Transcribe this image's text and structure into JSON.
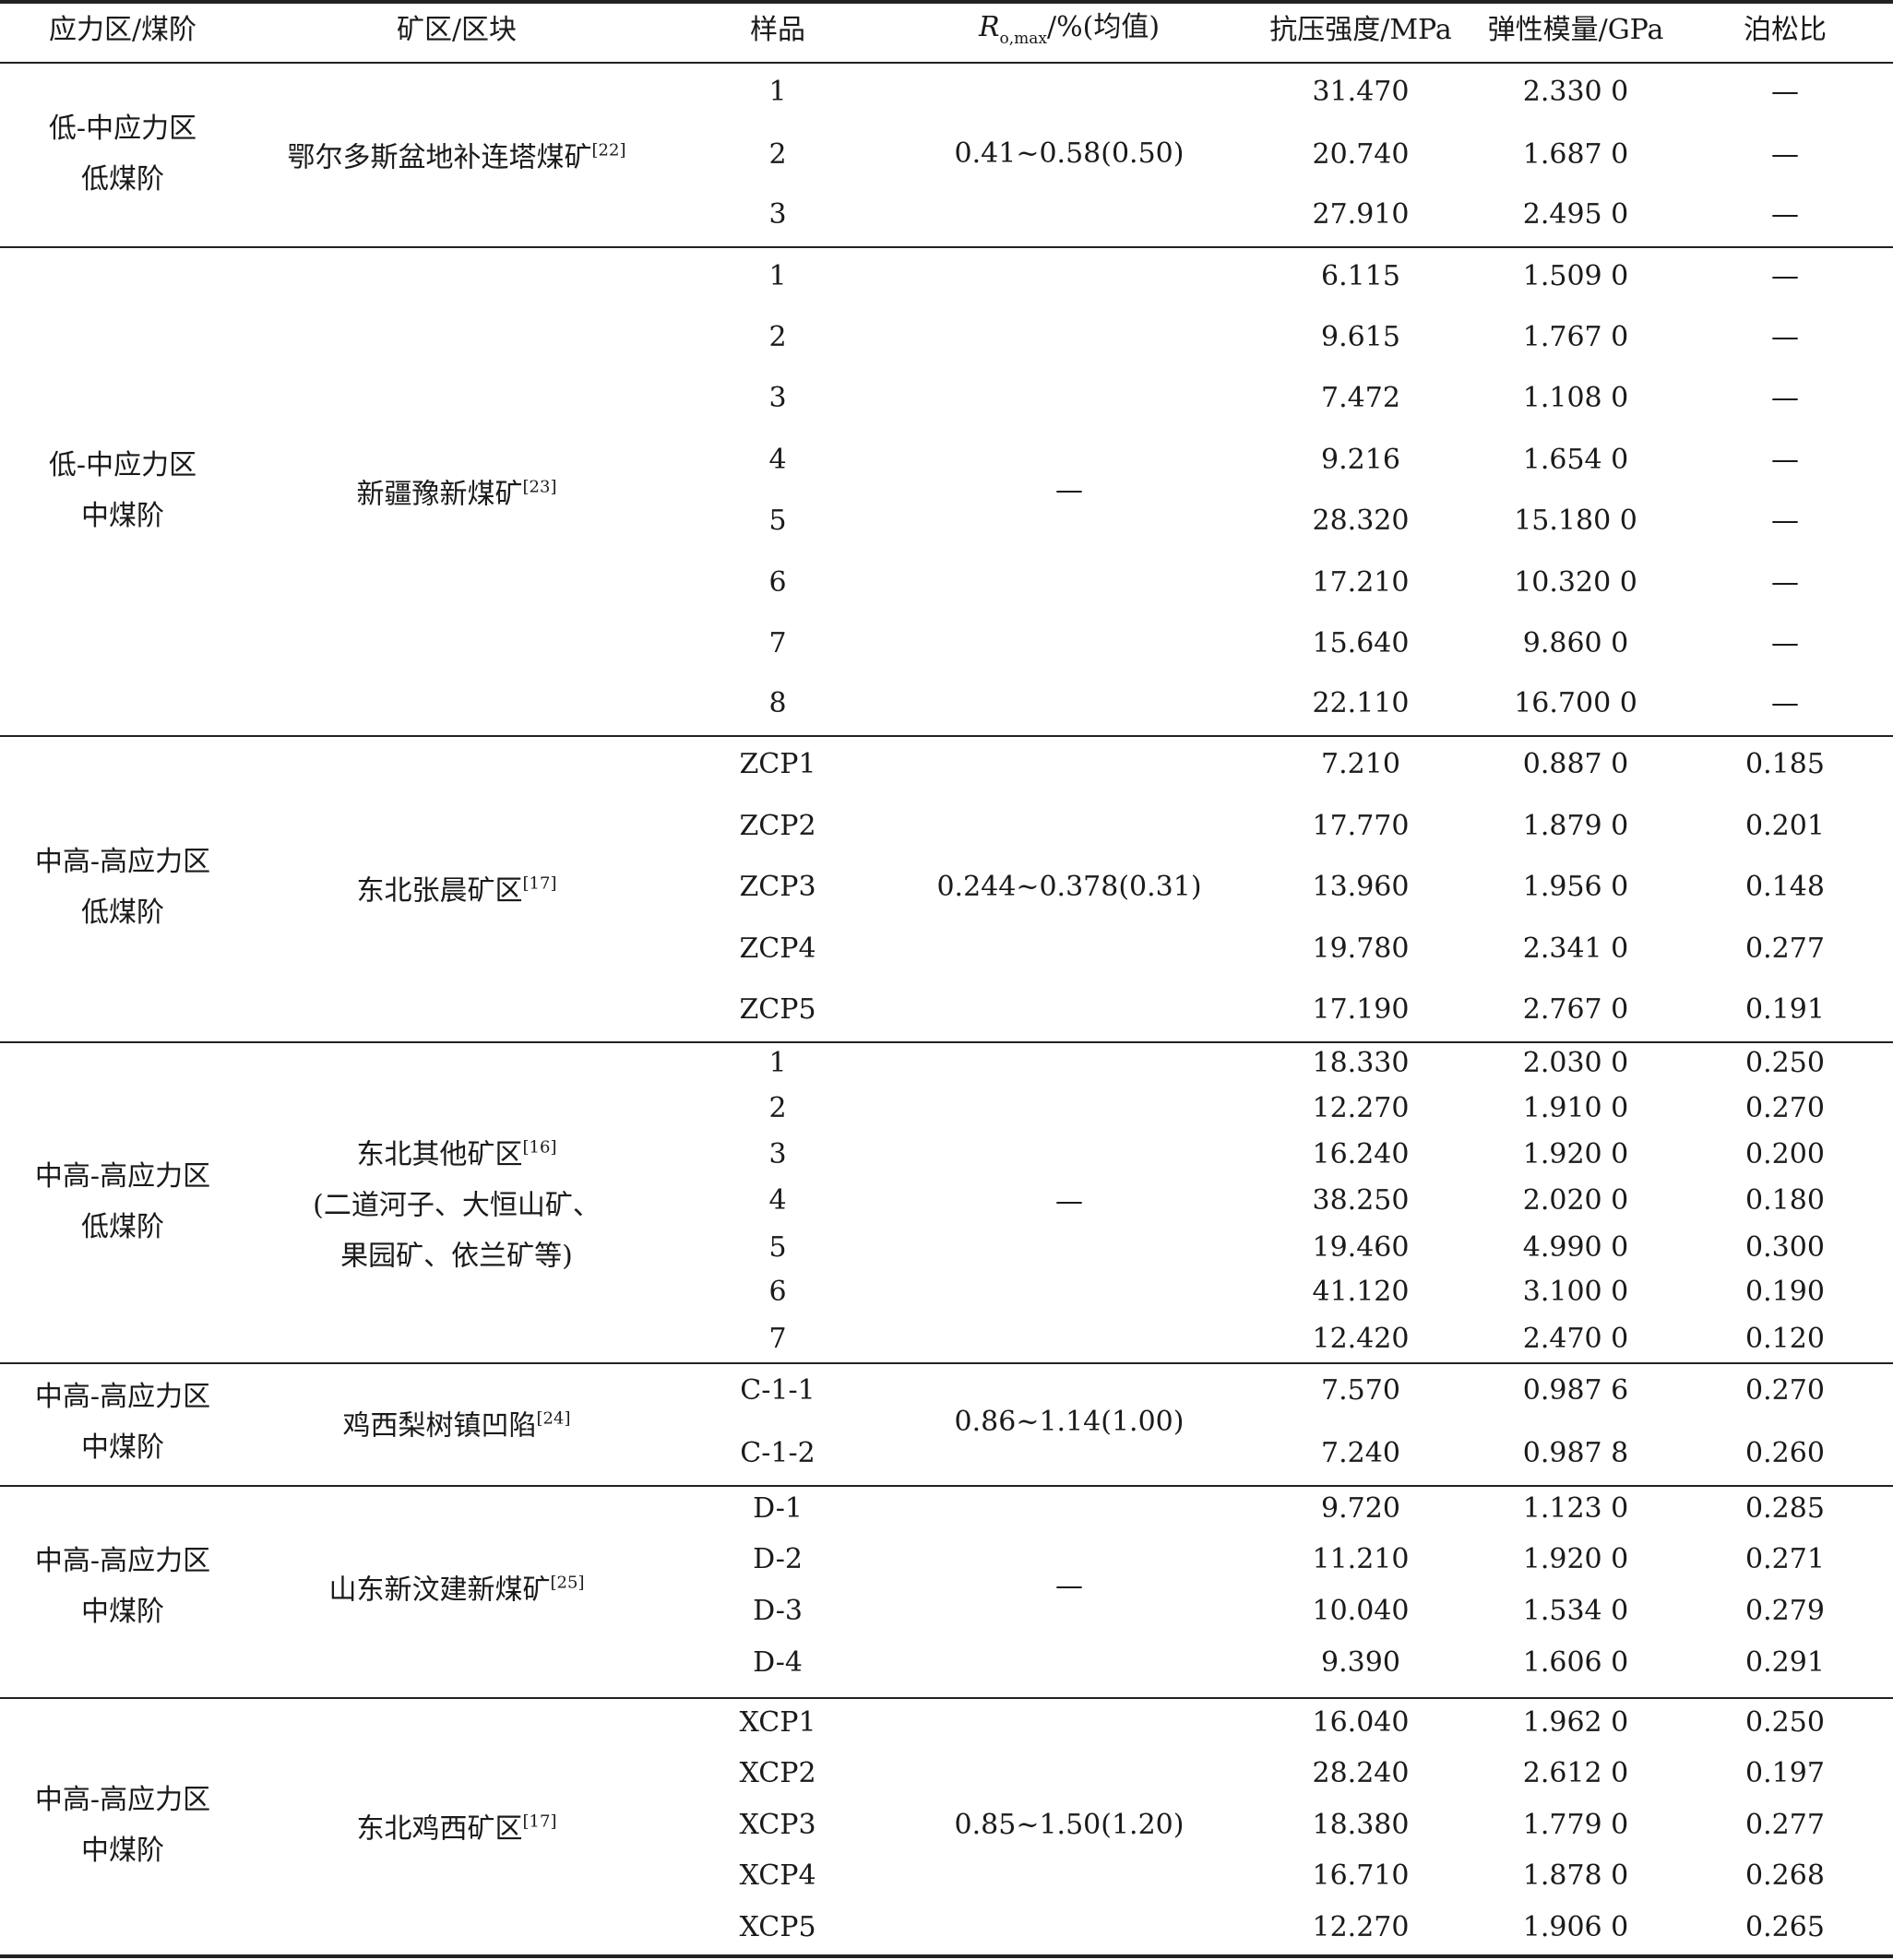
{
  "header": {
    "col1": "应力区/煤阶",
    "col2": "矿区/区块",
    "col3": "样品",
    "col4_symbol": "R",
    "col4_sub": "o,max",
    "col4_rest": "/%(均值)",
    "col5": "抗压强度/MPa",
    "col6": "弹性模量/GPa",
    "col7": "泊松比"
  },
  "groups": [
    {
      "stress": [
        "低-中应力区",
        "低煤阶"
      ],
      "area": [
        {
          "text": "鄂尔多斯盆地补连塔煤矿",
          "ref": "[22]"
        }
      ],
      "ro": "0.41~0.58(0.50)",
      "rows": [
        [
          "1",
          "31.470",
          "2.330 0",
          "—"
        ],
        [
          "2",
          "20.740",
          "1.687 0",
          "—"
        ],
        [
          "3",
          "27.910",
          "2.495 0",
          "—"
        ]
      ]
    },
    {
      "stress": [
        "低-中应力区",
        "中煤阶"
      ],
      "area": [
        {
          "text": "新疆豫新煤矿",
          "ref": "[23]"
        }
      ],
      "ro": "—",
      "rows": [
        [
          "1",
          "6.115",
          "1.509 0",
          "—"
        ],
        [
          "2",
          "9.615",
          "1.767 0",
          "—"
        ],
        [
          "3",
          "7.472",
          "1.108 0",
          "—"
        ],
        [
          "4",
          "9.216",
          "1.654 0",
          "—"
        ],
        [
          "5",
          "28.320",
          "15.180 0",
          "—"
        ],
        [
          "6",
          "17.210",
          "10.320 0",
          "—"
        ],
        [
          "7",
          "15.640",
          "9.860 0",
          "—"
        ],
        [
          "8",
          "22.110",
          "16.700 0",
          "—"
        ]
      ]
    },
    {
      "stress": [
        "中高-高应力区",
        "低煤阶"
      ],
      "area": [
        {
          "text": "东北张晨矿区",
          "ref": "[17]"
        }
      ],
      "ro": "0.244~0.378(0.31)",
      "rows": [
        [
          "ZCP1",
          "7.210",
          "0.887 0",
          "0.185"
        ],
        [
          "ZCP2",
          "17.770",
          "1.879 0",
          "0.201"
        ],
        [
          "ZCP3",
          "13.960",
          "1.956 0",
          "0.148"
        ],
        [
          "ZCP4",
          "19.780",
          "2.341 0",
          "0.277"
        ],
        [
          "ZCP5",
          "17.190",
          "2.767 0",
          "0.191"
        ]
      ]
    },
    {
      "stress": [
        "中高-高应力区",
        "低煤阶"
      ],
      "area": [
        {
          "text": "东北其他矿区",
          "ref": "[16]"
        },
        {
          "text": "(二道河子、大恒山矿、",
          "ref": ""
        },
        {
          "text": "果园矿、依兰矿等)",
          "ref": ""
        }
      ],
      "ro": "—",
      "rows": [
        [
          "1",
          "18.330",
          "2.030 0",
          "0.250"
        ],
        [
          "2",
          "12.270",
          "1.910 0",
          "0.270"
        ],
        [
          "3",
          "16.240",
          "1.920 0",
          "0.200"
        ],
        [
          "4",
          "38.250",
          "2.020 0",
          "0.180"
        ],
        [
          "5",
          "19.460",
          "4.990 0",
          "0.300"
        ],
        [
          "6",
          "41.120",
          "3.100 0",
          "0.190"
        ],
        [
          "7",
          "12.420",
          "2.470 0",
          "0.120"
        ]
      ]
    },
    {
      "stress": [
        "中高-高应力区",
        "中煤阶"
      ],
      "area": [
        {
          "text": "鸡西梨树镇凹陷",
          "ref": "[24]"
        }
      ],
      "ro": "0.86~1.14(1.00)",
      "rows": [
        [
          "C-1-1",
          "7.570",
          "0.987 6",
          "0.270"
        ],
        [
          "C-1-2",
          "7.240",
          "0.987 8",
          "0.260"
        ]
      ]
    },
    {
      "stress": [
        "中高-高应力区",
        "中煤阶"
      ],
      "area": [
        {
          "text": "山东新汶建新煤矿",
          "ref": "[25]"
        }
      ],
      "ro": "—",
      "rows": [
        [
          "D-1",
          "9.720",
          "1.123 0",
          "0.285"
        ],
        [
          "D-2",
          "11.210",
          "1.920 0",
          "0.271"
        ],
        [
          "D-3",
          "10.040",
          "1.534 0",
          "0.279"
        ],
        [
          "D-4",
          "9.390",
          "1.606 0",
          "0.291"
        ]
      ]
    },
    {
      "stress": [
        "中高-高应力区",
        "中煤阶"
      ],
      "area": [
        {
          "text": "东北鸡西矿区",
          "ref": "[17]"
        }
      ],
      "ro": "0.85~1.50(1.20)",
      "rows": [
        [
          "XCP1",
          "16.040",
          "1.962 0",
          "0.250"
        ],
        [
          "XCP2",
          "28.240",
          "2.612 0",
          "0.197"
        ],
        [
          "XCP3",
          "18.380",
          "1.779 0",
          "0.277"
        ],
        [
          "XCP4",
          "16.710",
          "1.878 0",
          "0.268"
        ],
        [
          "XCP5",
          "12.270",
          "1.906 0",
          "0.265"
        ]
      ]
    }
  ]
}
